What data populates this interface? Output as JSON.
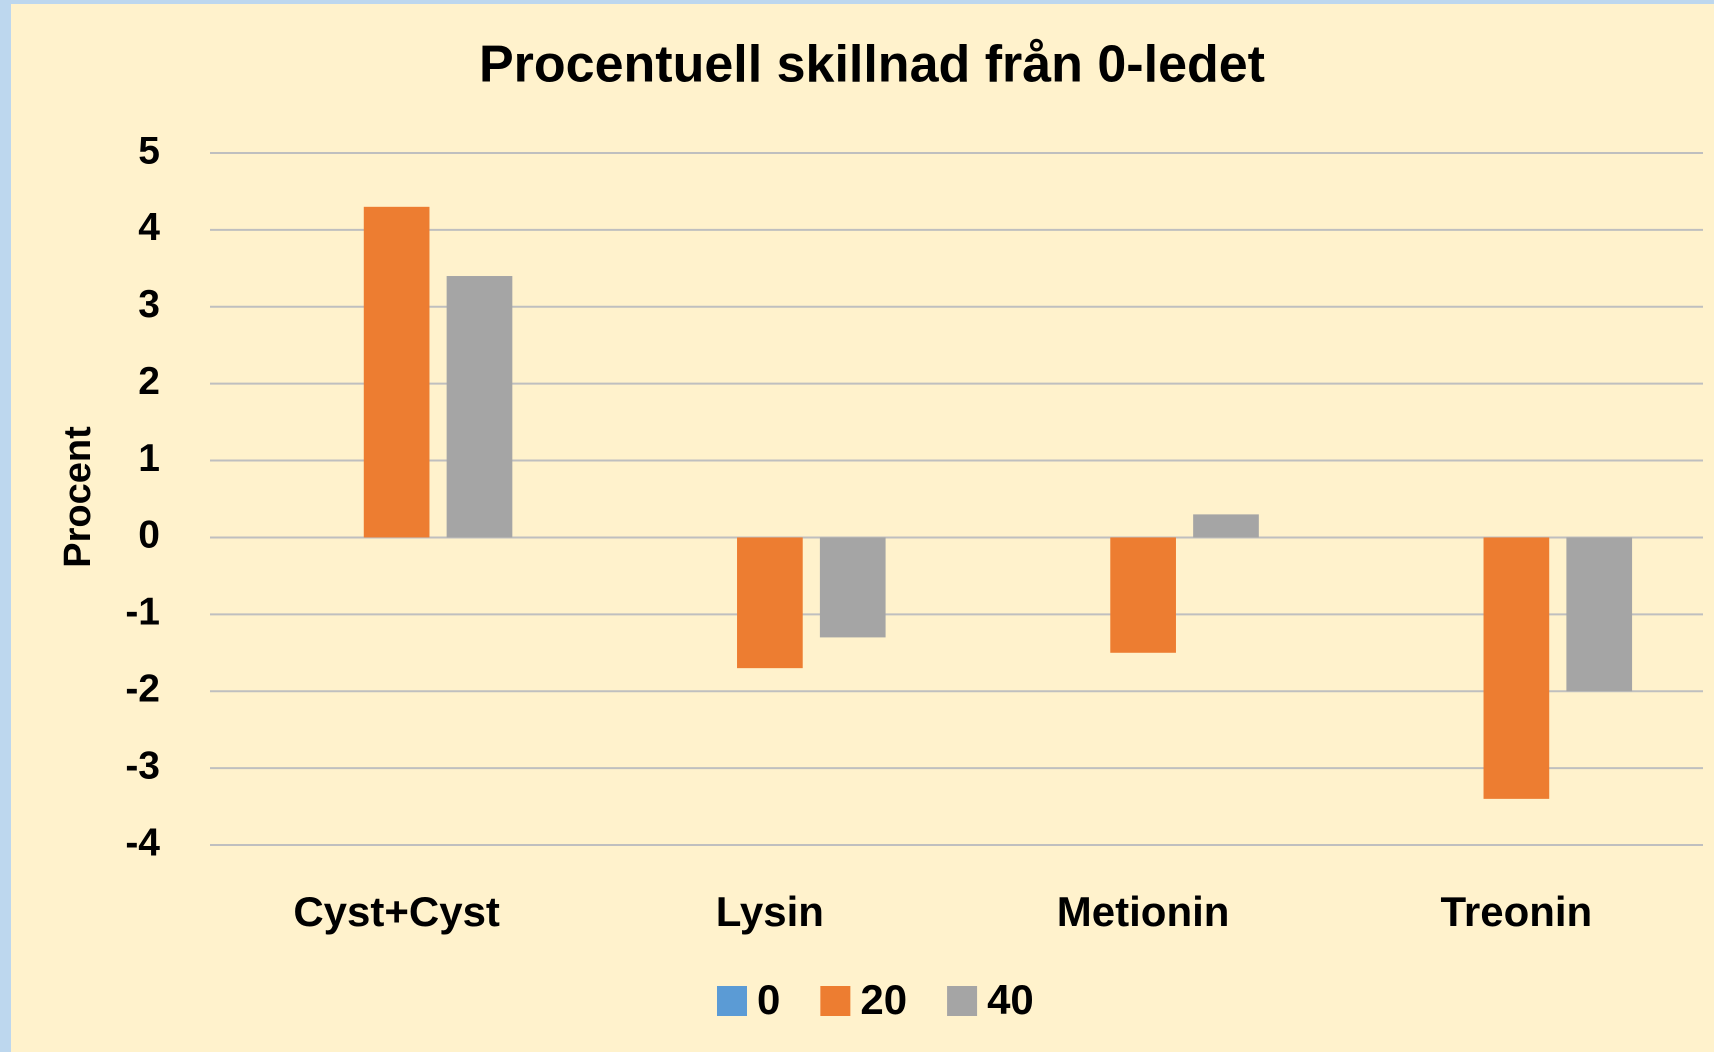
{
  "chart_data": {
    "type": "bar",
    "title": "Procentuell skillnad från 0-ledet",
    "y_label": "Procent",
    "categories": [
      "Cyst+Cyst",
      "Lysin",
      "Metionin",
      "Treonin"
    ],
    "series": [
      {
        "name": "0",
        "color": "#5b9bd5",
        "values": [
          0,
          0,
          0,
          0
        ]
      },
      {
        "name": "20",
        "color": "#ed7d31",
        "values": [
          4.3,
          -1.7,
          -1.5,
          -3.4
        ]
      },
      {
        "name": "40",
        "color": "#a5a5a5",
        "values": [
          3.4,
          -1.3,
          0.3,
          -2.0
        ]
      }
    ],
    "ylim": [
      -4,
      5
    ],
    "yticks": [
      -4,
      -3,
      -2,
      -1,
      0,
      1,
      2,
      3,
      4,
      5
    ],
    "grid": true,
    "legend": "bottom"
  }
}
